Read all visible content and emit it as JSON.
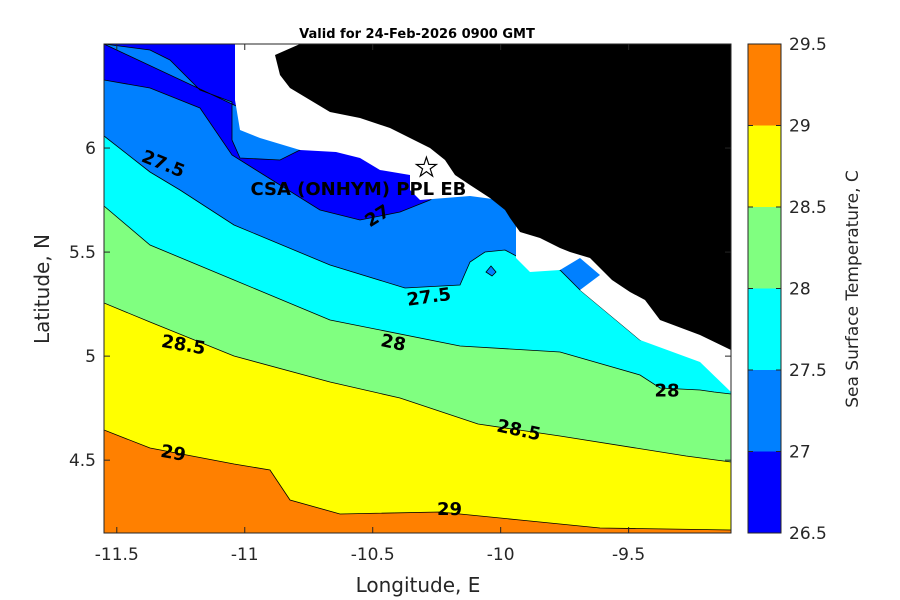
{
  "chart_data": {
    "type": "contour",
    "title": "Valid for 24-Feb-2026 0900 GMT",
    "xlabel": "Longitude, E",
    "ylabel": "Latitude, N",
    "xlim": [
      -11.55,
      -9.1
    ],
    "ylim": [
      4.15,
      6.5
    ],
    "xticks": [
      -11.5,
      -11,
      -10.5,
      -10,
      -9.5
    ],
    "xtick_labels": [
      "-11.5",
      "-11",
      "-10.5",
      "-10",
      "-9.5"
    ],
    "yticks": [
      4.5,
      5,
      5.5,
      6
    ],
    "ytick_labels": [
      "4.5",
      "5",
      "5.5",
      "6"
    ],
    "colorbar": {
      "label": "Sea Surface Temperature, C",
      "levels": [
        26.5,
        27,
        27.5,
        28,
        28.5,
        29,
        29.5
      ],
      "tick_labels": [
        "26.5",
        "27",
        "27.5",
        "28",
        "28.5",
        "29",
        "29.5"
      ],
      "colors": [
        "#0000ff",
        "#0080ff",
        "#00ffff",
        "#80ff80",
        "#ffff00",
        "#ff8000"
      ]
    },
    "contour_labels": [
      {
        "text": "27.5",
        "lon": -11.32,
        "lat": 5.92,
        "angle": 22
      },
      {
        "text": "27",
        "lon": -10.48,
        "lat": 5.67,
        "angle": -32
      },
      {
        "text": "27.5",
        "lon": -10.28,
        "lat": 5.28,
        "angle": -8
      },
      {
        "text": "28",
        "lon": -10.42,
        "lat": 5.06,
        "angle": 12
      },
      {
        "text": "28",
        "lon": -9.35,
        "lat": 4.83,
        "angle": 0
      },
      {
        "text": "28.5",
        "lon": -11.24,
        "lat": 5.05,
        "angle": 10
      },
      {
        "text": "28.5",
        "lon": -9.93,
        "lat": 4.64,
        "angle": 12
      },
      {
        "text": "29",
        "lon": -11.28,
        "lat": 4.53,
        "angle": 10
      },
      {
        "text": "29",
        "lon": -10.2,
        "lat": 4.26,
        "angle": 0
      }
    ],
    "site": {
      "label": "CSA (ONHYM) PPL EB",
      "lon": -10.29,
      "lat": 5.91
    }
  }
}
